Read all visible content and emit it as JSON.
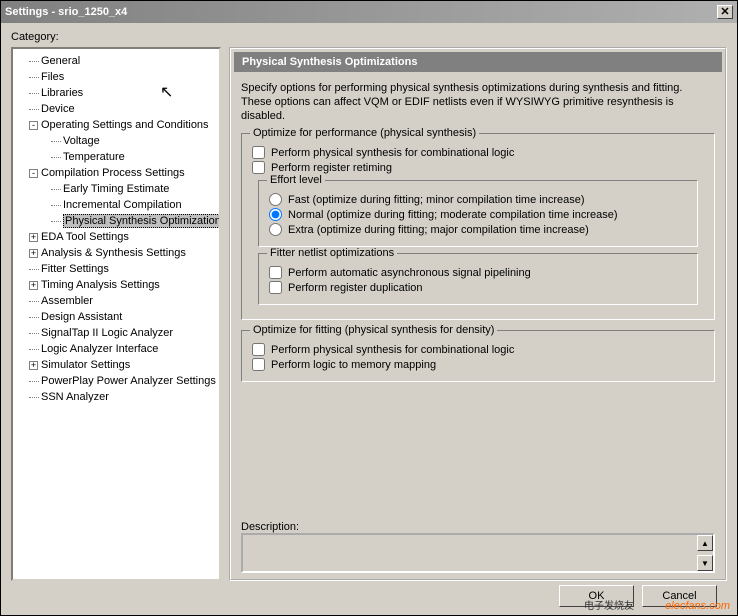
{
  "window": {
    "title": "Settings - srio_1250_x4",
    "close_glyph": "✕"
  },
  "category_label": "Category:",
  "tree": [
    {
      "label": "General",
      "indent": 1,
      "exp": null
    },
    {
      "label": "Files",
      "indent": 1,
      "exp": null
    },
    {
      "label": "Libraries",
      "indent": 1,
      "exp": null
    },
    {
      "label": "Device",
      "indent": 1,
      "exp": null
    },
    {
      "label": "Operating Settings and Conditions",
      "indent": 1,
      "exp": "-"
    },
    {
      "label": "Voltage",
      "indent": 2,
      "exp": null
    },
    {
      "label": "Temperature",
      "indent": 2,
      "exp": null
    },
    {
      "label": "Compilation Process Settings",
      "indent": 1,
      "exp": "-"
    },
    {
      "label": "Early Timing Estimate",
      "indent": 2,
      "exp": null
    },
    {
      "label": "Incremental Compilation",
      "indent": 2,
      "exp": null
    },
    {
      "label": "Physical Synthesis Optimizations",
      "indent": 2,
      "exp": null,
      "selected": true
    },
    {
      "label": "EDA Tool Settings",
      "indent": 1,
      "exp": "+"
    },
    {
      "label": "Analysis & Synthesis Settings",
      "indent": 1,
      "exp": "+"
    },
    {
      "label": "Fitter Settings",
      "indent": 1,
      "exp": null
    },
    {
      "label": "Timing Analysis Settings",
      "indent": 1,
      "exp": "+"
    },
    {
      "label": "Assembler",
      "indent": 1,
      "exp": null
    },
    {
      "label": "Design Assistant",
      "indent": 1,
      "exp": null
    },
    {
      "label": "SignalTap II Logic Analyzer",
      "indent": 1,
      "exp": null
    },
    {
      "label": "Logic Analyzer Interface",
      "indent": 1,
      "exp": null
    },
    {
      "label": "Simulator Settings",
      "indent": 1,
      "exp": "+"
    },
    {
      "label": "PowerPlay Power Analyzer Settings",
      "indent": 1,
      "exp": null
    },
    {
      "label": "SSN Analyzer",
      "indent": 1,
      "exp": null
    }
  ],
  "panel": {
    "header": "Physical Synthesis Optimizations",
    "intro": "Specify options for performing physical synthesis optimizations during synthesis and fitting. These options can affect VQM or EDIF netlists even if WYSIWYG primitive resynthesis is disabled.",
    "group_perf": {
      "legend": "Optimize for performance (physical synthesis)",
      "chk_comb": "Perform physical synthesis for combinational logic",
      "chk_retime": "Perform register retiming",
      "effort_legend": "Effort level",
      "rad_fast": "Fast (optimize during fitting; minor compilation time increase)",
      "rad_normal": "Normal (optimize during fitting; moderate compilation time increase)",
      "rad_extra": "Extra (optimize during fitting; major compilation time increase)",
      "fitter_legend": "Fitter netlist optimizations",
      "chk_async": "Perform automatic asynchronous signal pipelining",
      "chk_dup": "Perform register duplication"
    },
    "group_fit": {
      "legend": "Optimize for fitting (physical synthesis for density)",
      "chk_comb2": "Perform physical synthesis for combinational logic",
      "chk_mem": "Perform logic to memory mapping"
    },
    "desc_label": "Description:",
    "desc_value": ""
  },
  "buttons": {
    "ok": "OK",
    "cancel": "Cancel"
  },
  "colors": {
    "window_bg": "#d4d0c8",
    "titlebar_grad_from": "#808080",
    "titlebar_grad_to": "#b0b0b0",
    "panel_header_bg": "#808080",
    "tree_bg": "#ffffff",
    "selected_bg": "#c0c0c0",
    "border_dark": "#404040",
    "border_light": "#ffffff"
  },
  "watermark": {
    "text1": "elecfans.com",
    "text2": "电子发烧友"
  },
  "checkbox_states": {
    "perf_comb": false,
    "perf_retime": false,
    "effort": "normal",
    "async_pipe": false,
    "reg_dup": false,
    "fit_comb": false,
    "fit_mem": false
  }
}
